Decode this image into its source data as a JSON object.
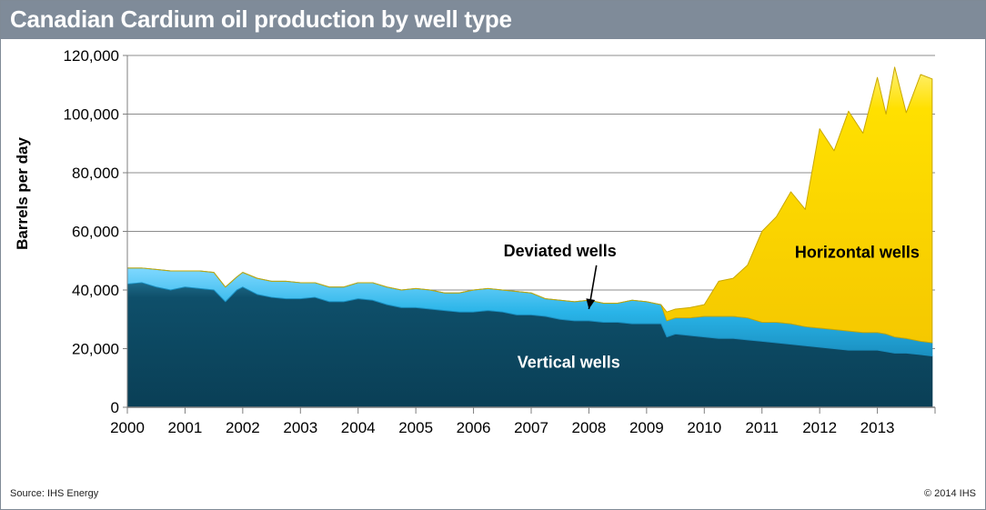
{
  "header": {
    "title": "Canadian Cardium oil production by well type"
  },
  "footer": {
    "source": "Source: IHS Energy",
    "copyright": "© 2014 IHS"
  },
  "colors": {
    "vertical": "#0e4f6a",
    "deviated": "#29b4e8",
    "horizontal": "#ffd700",
    "title_bar": "#7f8b99"
  },
  "chart_data": {
    "type": "area",
    "stacked": true,
    "ylabel": "Barrels per day",
    "xlabel": "",
    "ylim": [
      0,
      120000
    ],
    "xlim": [
      2000,
      2014
    ],
    "grid": true,
    "y_ticks": [
      0,
      20000,
      40000,
      60000,
      80000,
      100000,
      120000
    ],
    "y_tick_labels": [
      "0",
      "20,000",
      "40,000",
      "60,000",
      "80,000",
      "100,000",
      "120,000"
    ],
    "x_ticks": [
      2000,
      2001,
      2002,
      2003,
      2004,
      2005,
      2006,
      2007,
      2008,
      2009,
      2010,
      2011,
      2012,
      2013
    ],
    "x_tick_labels": [
      "2000",
      "2001",
      "2002",
      "2003",
      "2004",
      "2005",
      "2006",
      "2007",
      "2008",
      "2009",
      "2010",
      "2011",
      "2012",
      "2013"
    ],
    "x": [
      2000,
      2000.25,
      2000.5,
      2000.75,
      2001,
      2001.25,
      2001.5,
      2001.7,
      2001.9,
      2002,
      2002.25,
      2002.5,
      2002.75,
      2003,
      2003.25,
      2003.5,
      2003.75,
      2004,
      2004.25,
      2004.5,
      2004.75,
      2005,
      2005.25,
      2005.5,
      2005.75,
      2006,
      2006.25,
      2006.5,
      2006.75,
      2007,
      2007.25,
      2007.5,
      2007.75,
      2008,
      2008.25,
      2008.5,
      2008.75,
      2009,
      2009.25,
      2009.35,
      2009.5,
      2009.75,
      2010,
      2010.25,
      2010.5,
      2010.75,
      2011,
      2011.25,
      2011.5,
      2011.75,
      2012,
      2012.25,
      2012.5,
      2012.75,
      2013,
      2013.15,
      2013.3,
      2013.5,
      2013.75,
      2013.95
    ],
    "series": [
      {
        "name": "Vertical wells",
        "values": [
          42000,
          42500,
          41000,
          40000,
          41000,
          40500,
          40000,
          36000,
          40000,
          41000,
          38500,
          37500,
          37000,
          37000,
          37500,
          36000,
          36000,
          37000,
          36500,
          35000,
          34000,
          34000,
          33500,
          33000,
          32500,
          32500,
          33000,
          32500,
          31500,
          31500,
          31000,
          30000,
          29500,
          29500,
          29000,
          29000,
          28500,
          28500,
          28500,
          24000,
          25000,
          24500,
          24000,
          23500,
          23500,
          23000,
          22500,
          22000,
          21500,
          21000,
          20500,
          20000,
          19500,
          19500,
          19500,
          19000,
          18500,
          18500,
          18000,
          17500
        ]
      },
      {
        "name": "Deviated wells",
        "values": [
          5500,
          5000,
          6000,
          6500,
          5500,
          6000,
          6000,
          5000,
          4500,
          5000,
          5500,
          5500,
          6000,
          5500,
          5000,
          5000,
          5000,
          5500,
          6000,
          6000,
          6000,
          6500,
          6500,
          6000,
          6500,
          7500,
          7500,
          7500,
          8000,
          7500,
          6000,
          6500,
          6500,
          7000,
          6500,
          6500,
          8000,
          7500,
          6500,
          5500,
          5500,
          6000,
          7000,
          7500,
          7500,
          7500,
          6500,
          7000,
          7000,
          6500,
          6500,
          6500,
          6500,
          6000,
          6000,
          6000,
          5500,
          5000,
          4500,
          4500
        ]
      },
      {
        "name": "Horizontal wells",
        "values": [
          0,
          0,
          0,
          0,
          0,
          0,
          0,
          0,
          0,
          0,
          0,
          0,
          0,
          0,
          0,
          0,
          0,
          0,
          0,
          0,
          0,
          0,
          0,
          0,
          0,
          0,
          0,
          0,
          0,
          0,
          0,
          0,
          0,
          0,
          0,
          0,
          0,
          0,
          0,
          3000,
          3000,
          3500,
          4000,
          12000,
          13000,
          18000,
          31000,
          36000,
          45000,
          40000,
          68000,
          61000,
          75000,
          68000,
          87000,
          75000,
          92000,
          77000,
          91000,
          90000
        ]
      }
    ],
    "annotations": [
      {
        "text": "Deviated wells",
        "x": 2007.5,
        "y": 51500,
        "arrow_to": [
          2008.0,
          33500
        ]
      },
      {
        "text": "Horizontal wells",
        "x": 2012.65,
        "y": 51000
      },
      {
        "text": "Vertical wells",
        "x": 2007.65,
        "y": 13500
      }
    ]
  }
}
